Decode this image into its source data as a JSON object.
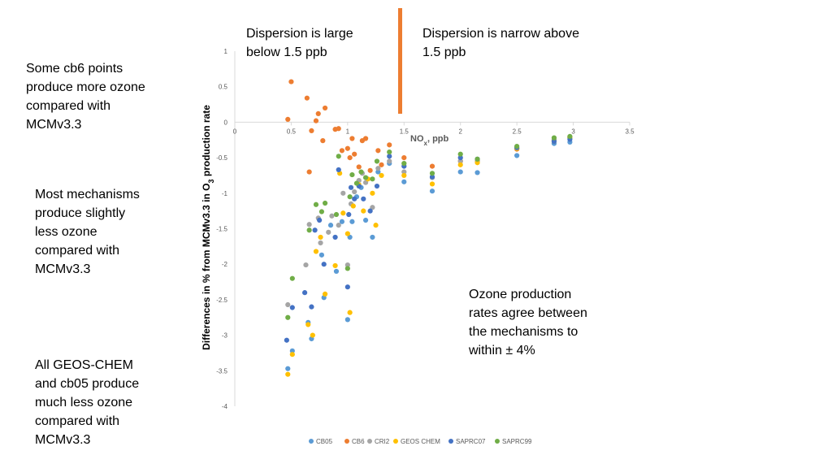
{
  "annotations": {
    "left_top": "Some cb6 points\nproduce more ozone\ncompared with\nMCMv3.3",
    "left_mid": "Most mechanisms\nproduce slightly\nless ozone\ncompared with\nMCMv3.3",
    "left_bottom": "All GEOS-CHEM\nand cb05 produce\nmuch less ozone\ncompared with\nMCMv3.3",
    "top_left": "Dispersion is large\nbelow 1.5 ppb",
    "top_right": "Dispersion is narrow above\n1.5 ppb",
    "right": "Ozone production\nrates agree between\nthe mechanisms to\nwithin ± 4%"
  },
  "colors": {
    "CB05": "#5B9BD5",
    "CB6": "#ED7D31",
    "CRI2": "#A5A5A5",
    "GEOS CHEM": "#FFC000",
    "SAPRC07": "#4472C4",
    "SAPRC99": "#70AD47",
    "divider": "#ED7D31",
    "axis": "#D9D9D9"
  },
  "chart_data": {
    "type": "scatter",
    "title": "",
    "xlabel": "NOx, ppb",
    "ylabel": "Differences in % from MCMv3.3 in O3 production rate",
    "xlim": [
      0,
      3.5
    ],
    "ylim": [
      -4,
      1
    ],
    "xticks": [
      "0",
      "0.5",
      "1",
      "1.5",
      "2",
      "2.5",
      "3",
      "3.5"
    ],
    "yticks": [
      "1",
      "0.5",
      "0",
      "-0.5",
      "-1",
      "-1.5",
      "-2",
      "-2.5",
      "-3",
      "-3.5",
      "-4"
    ],
    "series": [
      {
        "name": "CB05",
        "x": [
          0.47,
          0.51,
          0.65,
          0.68,
          0.77,
          0.79,
          0.85,
          0.9,
          0.95,
          1.0,
          1.02,
          1.04,
          1.08,
          1.12,
          1.16,
          1.22,
          1.27,
          1.37,
          1.5,
          1.75,
          2.0,
          2.15,
          2.5,
          2.83,
          2.97
        ],
        "y": [
          -3.47,
          -3.22,
          -2.82,
          -3.05,
          -1.87,
          -2.47,
          -1.45,
          -2.1,
          -1.4,
          -2.78,
          -1.62,
          -1.4,
          -1.05,
          -0.92,
          -1.38,
          -1.62,
          -0.7,
          -0.58,
          -0.84,
          -0.97,
          -0.7,
          -0.71,
          -0.47,
          -0.3,
          -0.28
        ]
      },
      {
        "name": "CB6",
        "x": [
          0.47,
          0.5,
          0.64,
          0.66,
          0.68,
          0.72,
          0.74,
          0.78,
          0.8,
          0.89,
          0.92,
          0.95,
          1.0,
          1.02,
          1.04,
          1.06,
          1.1,
          1.13,
          1.16,
          1.2,
          1.27,
          1.3,
          1.37,
          1.5,
          1.75,
          2.0,
          2.15,
          2.5,
          2.83,
          2.97
        ],
        "y": [
          0.04,
          0.57,
          0.34,
          -0.7,
          -0.12,
          0.02,
          0.12,
          -0.26,
          0.2,
          -0.1,
          -0.09,
          -0.4,
          -0.37,
          -0.5,
          -0.23,
          -0.45,
          -0.63,
          -0.26,
          -0.23,
          -0.68,
          -0.4,
          -0.6,
          -0.32,
          -0.5,
          -0.62,
          -0.55,
          -0.55,
          -0.38,
          -0.25,
          -0.22
        ]
      },
      {
        "name": "CRI2",
        "x": [
          0.47,
          0.63,
          0.66,
          0.74,
          0.76,
          0.83,
          0.86,
          0.92,
          0.96,
          1.0,
          1.03,
          1.06,
          1.1,
          1.13,
          1.16,
          1.22,
          1.27,
          1.37,
          1.5,
          1.75,
          2.0,
          2.15,
          2.5,
          2.83,
          2.97
        ],
        "y": [
          -2.57,
          -2.01,
          -1.44,
          -1.35,
          -1.7,
          -1.55,
          -1.32,
          -1.45,
          -1.0,
          -2.01,
          -1.15,
          -0.98,
          -0.82,
          -0.72,
          -0.85,
          -1.2,
          -0.65,
          -0.55,
          -0.7,
          -0.78,
          -0.55,
          -0.55,
          -0.36,
          -0.24,
          -0.22
        ]
      },
      {
        "name": "GEOS CHEM",
        "x": [
          0.47,
          0.51,
          0.65,
          0.69,
          0.72,
          0.76,
          0.8,
          0.89,
          0.93,
          0.96,
          1.0,
          1.02,
          1.05,
          1.1,
          1.14,
          1.18,
          1.22,
          1.25,
          1.3,
          1.5,
          1.75,
          2.0,
          2.15,
          2.5,
          2.83,
          2.97
        ],
        "y": [
          -3.55,
          -3.27,
          -2.85,
          -3.0,
          -1.82,
          -1.62,
          -2.42,
          -2.02,
          -0.72,
          -1.28,
          -1.57,
          -2.68,
          -1.18,
          -0.88,
          -1.25,
          -0.8,
          -1.0,
          -1.45,
          -0.75,
          -0.75,
          -0.87,
          -0.6,
          -0.57,
          -0.37,
          -0.27,
          -0.21
        ]
      },
      {
        "name": "SAPRC07",
        "x": [
          0.46,
          0.51,
          0.62,
          0.68,
          0.71,
          0.75,
          0.79,
          0.89,
          0.92,
          1.0,
          1.01,
          1.03,
          1.06,
          1.1,
          1.14,
          1.2,
          1.26,
          1.37,
          1.5,
          1.75,
          2.0,
          2.15,
          2.5,
          2.83,
          2.97
        ],
        "y": [
          -3.07,
          -2.61,
          -2.4,
          -2.6,
          -1.52,
          -1.38,
          -2.0,
          -1.62,
          -0.67,
          -2.32,
          -1.3,
          -0.92,
          -1.08,
          -0.9,
          -1.08,
          -1.25,
          -0.9,
          -0.48,
          -0.62,
          -0.77,
          -0.5,
          -0.52,
          -0.36,
          -0.27,
          -0.24
        ]
      },
      {
        "name": "SAPRC99",
        "x": [
          0.47,
          0.51,
          0.66,
          0.72,
          0.77,
          0.8,
          0.9,
          0.92,
          1.0,
          1.02,
          1.04,
          1.08,
          1.12,
          1.16,
          1.22,
          1.26,
          1.37,
          1.5,
          1.75,
          2.0,
          2.15,
          2.5,
          2.83,
          2.97
        ],
        "y": [
          -2.75,
          -2.2,
          -1.52,
          -1.16,
          -1.26,
          -1.14,
          -1.3,
          -0.48,
          -2.06,
          -1.05,
          -0.74,
          -0.86,
          -0.7,
          -0.78,
          -0.8,
          -0.55,
          -0.42,
          -0.58,
          -0.72,
          -0.45,
          -0.52,
          -0.34,
          -0.22,
          -0.2
        ]
      }
    ]
  }
}
